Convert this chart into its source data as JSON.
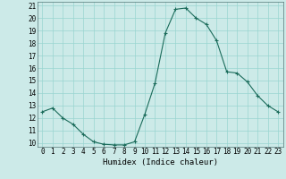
{
  "x": [
    0,
    1,
    2,
    3,
    4,
    5,
    6,
    7,
    8,
    9,
    10,
    11,
    12,
    13,
    14,
    15,
    16,
    17,
    18,
    19,
    20,
    21,
    22,
    23
  ],
  "y": [
    12.5,
    12.8,
    12.0,
    11.5,
    10.7,
    10.1,
    9.9,
    9.85,
    9.85,
    10.1,
    12.3,
    14.8,
    18.8,
    20.7,
    20.8,
    20.0,
    19.5,
    18.2,
    15.7,
    15.6,
    14.9,
    13.8,
    13.0,
    12.5
  ],
  "xlabel": "Humidex (Indice chaleur)",
  "bg_color": "#cceae8",
  "grid_color": "#99d5d0",
  "line_color": "#1a6b5a",
  "marker_color": "#1a6b5a",
  "ylim": [
    10,
    21
  ],
  "xlim": [
    -0.5,
    23.5
  ],
  "yticks": [
    10,
    11,
    12,
    13,
    14,
    15,
    16,
    17,
    18,
    19,
    20,
    21
  ],
  "xticks": [
    0,
    1,
    2,
    3,
    4,
    5,
    6,
    7,
    8,
    9,
    10,
    11,
    12,
    13,
    14,
    15,
    16,
    17,
    18,
    19,
    20,
    21,
    22,
    23
  ],
  "tick_fontsize": 5.5,
  "xlabel_fontsize": 6.5
}
